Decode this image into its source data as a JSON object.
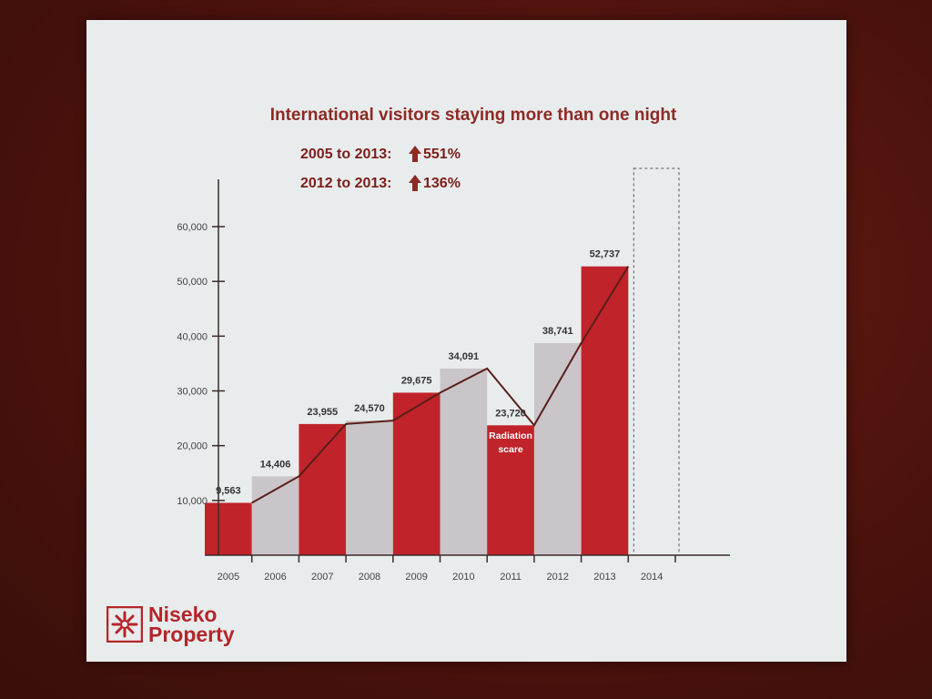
{
  "slide": {
    "title": "International visitors staying more than one night",
    "stats": [
      {
        "period": "2005 to 2013:",
        "change": "551%"
      },
      {
        "period": "2012 to 2013:",
        "change": "136%"
      }
    ],
    "logo": {
      "line1": "Niseko",
      "line2": "Property"
    },
    "annotation": {
      "line1": "Radiation",
      "line2": "scare"
    }
  },
  "chart_data": {
    "type": "bar",
    "categories": [
      "2005",
      "2006",
      "2007",
      "2008",
      "2009",
      "2010",
      "2011",
      "2012",
      "2013",
      "2014"
    ],
    "values": [
      9563,
      14406,
      23955,
      24570,
      29675,
      34091,
      23720,
      38741,
      52737,
      null
    ],
    "value_labels": [
      "9,563",
      "14,406",
      "23,955",
      "24,570",
      "29,675",
      "34,091",
      "23,720",
      "38,741",
      "52,737",
      ""
    ],
    "bar_colors": [
      "#c0232a",
      "#c9c5c9",
      "#c0232a",
      "#c9c5c9",
      "#c0232a",
      "#c9c5c9",
      "#c0232a",
      "#c9c5c9",
      "#c0232a",
      "none"
    ],
    "y_ticks": [
      10000,
      20000,
      30000,
      40000,
      50000,
      60000
    ],
    "y_tick_labels": [
      "10,000",
      "20,000",
      "30,000",
      "40,000",
      "50,000",
      "60,000"
    ],
    "ylim": [
      0,
      60000
    ],
    "trend_line": true,
    "placeholder_category": "2014",
    "annotation_category": "2011",
    "colors": {
      "red": "#c0232a",
      "grey": "#c9c5c9",
      "line": "#5a1e1a",
      "axis": "#3a2a2a"
    }
  }
}
